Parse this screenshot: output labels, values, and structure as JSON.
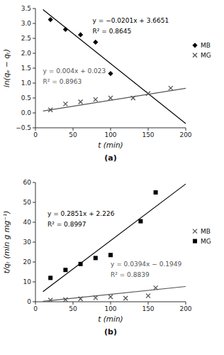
{
  "chart_data": [
    {
      "type": "scatter",
      "subtitle": "(a)",
      "x_label": "t (min)",
      "y_label": "ln(qₑ − qₜ)",
      "xlim": [
        0,
        200
      ],
      "ylim": [
        -0.5,
        3.5
      ],
      "xticks": [
        0,
        50,
        100,
        150,
        200
      ],
      "yticks": [
        {
          "value": -0.5,
          "label": "−0.5"
        },
        {
          "value": 0,
          "label": "0.0"
        },
        0.5,
        {
          "value": 1,
          "label": "1.0"
        },
        1.5,
        {
          "value": 2,
          "label": "2.0"
        },
        2.5,
        {
          "value": 3,
          "label": "3.0"
        },
        3.5
      ],
      "grid": false,
      "legend": "right",
      "series": [
        {
          "name": "MB",
          "color": "#000000",
          "marker": "diamond",
          "x": [
            20,
            40,
            60,
            80,
            100
          ],
          "values": [
            3.13,
            2.8,
            2.62,
            2.37,
            1.32
          ]
        },
        {
          "name": "MG",
          "color": "#555555",
          "marker": "x",
          "x": [
            20,
            40,
            60,
            80,
            100,
            130,
            150,
            180
          ],
          "values": [
            0.1,
            0.3,
            0.37,
            0.45,
            0.5,
            0.5,
            0.65,
            0.83
          ]
        },
        {
          "type": "line",
          "color": "#000000",
          "x": [
            10,
            200
          ],
          "values": [
            3.4641,
            -0.3549
          ]
        },
        {
          "type": "line",
          "color": "#555555",
          "x": [
            10,
            200
          ],
          "values": [
            0.063,
            0.823
          ]
        }
      ],
      "annotations": [
        {
          "text": "y = −0.0201x + 3.6651",
          "color": "#000000"
        },
        {
          "text": "R² = 0.8645",
          "color": "#000000"
        },
        {
          "text": "y = 0.004x + 0.023",
          "color": "#555555"
        },
        {
          "text": "R² = 0.8963",
          "color": "#555555"
        }
      ]
    },
    {
      "type": "scatter",
      "subtitle": "(b)",
      "x_label": "t (min)",
      "y_label": "t/qₜ (min g mg⁻¹)",
      "xlim": [
        0,
        200
      ],
      "ylim": [
        0,
        60
      ],
      "xticks": [
        0,
        50,
        100,
        150,
        200
      ],
      "yticks": [
        0,
        10,
        20,
        30,
        40,
        50,
        60
      ],
      "grid": false,
      "legend": "right",
      "series": [
        {
          "name": "MB",
          "color": "#555555",
          "marker": "x",
          "x": [
            20,
            40,
            60,
            80,
            100,
            120,
            150,
            160
          ],
          "values": [
            0.8,
            1.1,
            1.5,
            2.0,
            2.5,
            1.8,
            3.0,
            7.0
          ]
        },
        {
          "name": "MG",
          "color": "#000000",
          "marker": "square",
          "x": [
            20,
            40,
            60,
            80,
            100,
            140,
            160
          ],
          "values": [
            12.0,
            16.0,
            19.0,
            22.0,
            23.5,
            40.5,
            55.0
          ]
        },
        {
          "type": "line",
          "color": "#555555",
          "x": [
            10,
            200
          ],
          "values": [
            0.1991,
            7.6851
          ]
        },
        {
          "type": "line",
          "color": "#000000",
          "x": [
            10,
            200
          ],
          "values": [
            5.077,
            59.246
          ]
        }
      ],
      "annotations": [
        {
          "text": "y = 0.2851x + 2.226",
          "color": "#000000"
        },
        {
          "text": "R² = 0.8997",
          "color": "#000000"
        },
        {
          "text": "y = 0.0394x − 0.1949",
          "color": "#555555"
        },
        {
          "text": "R² = 0.8839",
          "color": "#555555"
        }
      ]
    }
  ]
}
